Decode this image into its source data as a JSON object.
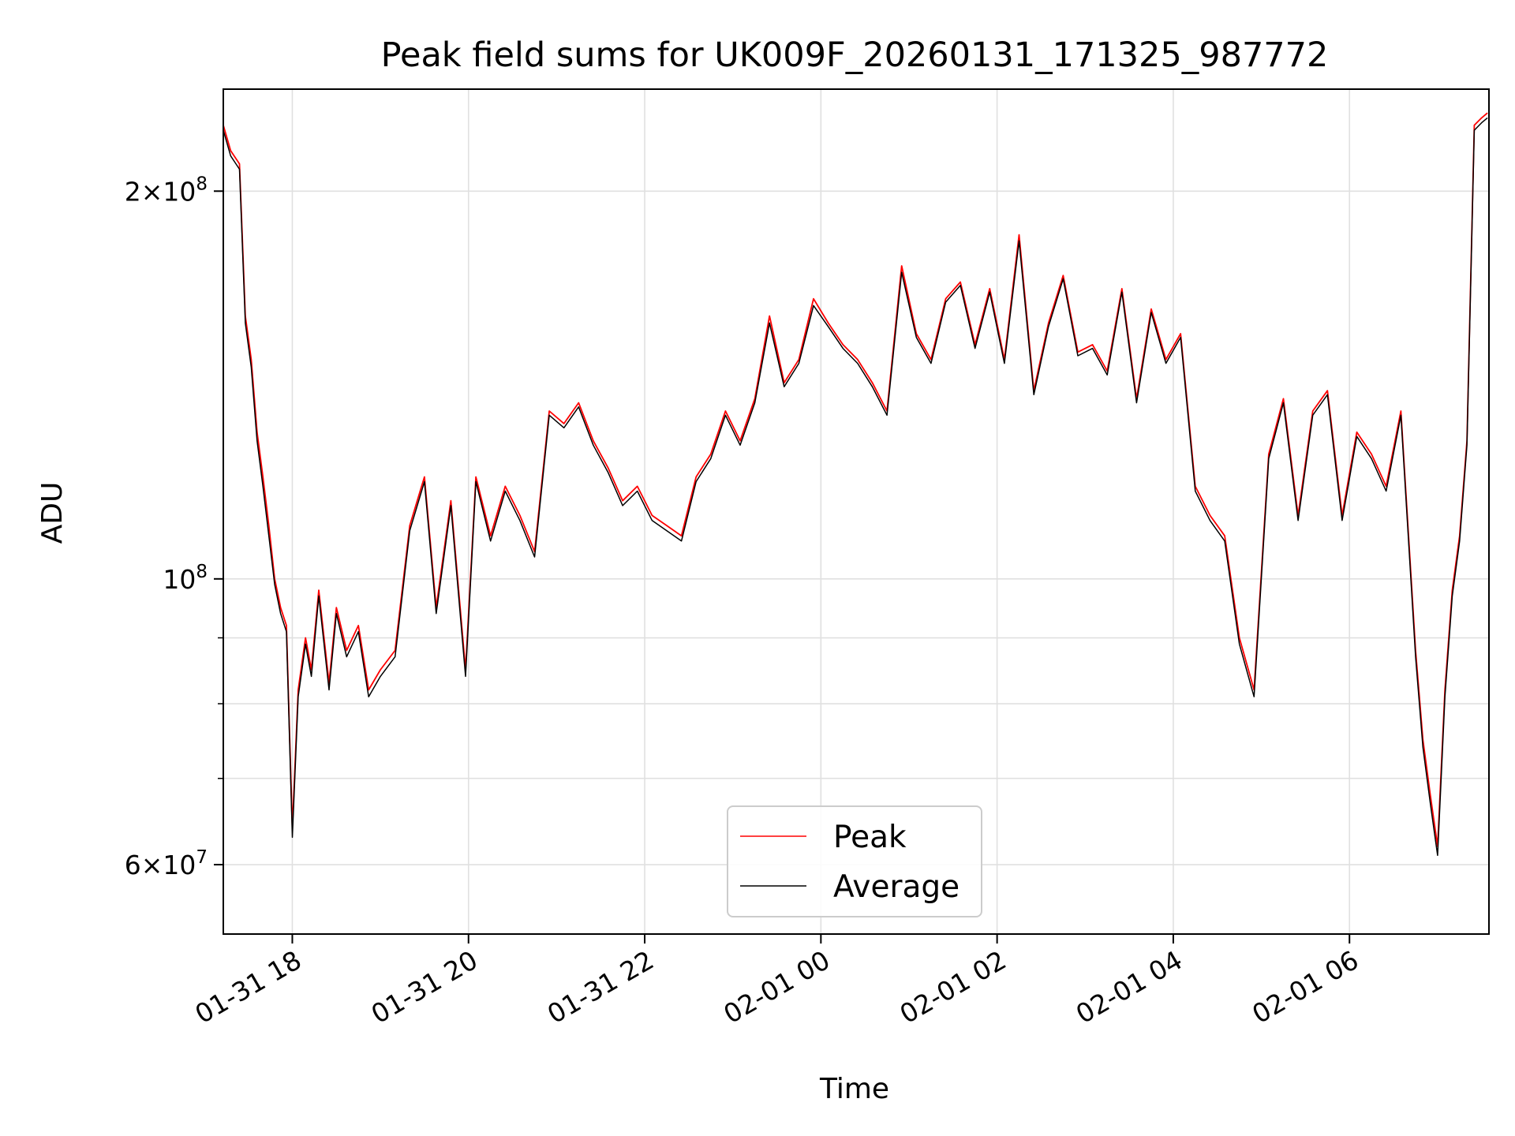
{
  "chart_data": {
    "type": "line",
    "title": "Peak field sums for UK009F_20260131_171325_987772",
    "xlabel": "Time",
    "ylabel": "ADU",
    "yscale": "log",
    "ylim": [
      53000000,
      240000000
    ],
    "xlim": [
      "2026-01-31T17:13",
      "2026-02-01T07:35"
    ],
    "grid": true,
    "legend": {
      "placement": "bottom-center",
      "entries": [
        "Peak",
        "Average"
      ]
    },
    "colors": {
      "Peak": "#ff0000",
      "Average": "#000000",
      "grid": "#e0e0e0",
      "axes": "#000000"
    },
    "xticks": [
      {
        "value": "2026-01-31T18:00",
        "label": "01-31 18"
      },
      {
        "value": "2026-01-31T20:00",
        "label": "01-31 20"
      },
      {
        "value": "2026-01-31T22:00",
        "label": "01-31 22"
      },
      {
        "value": "2026-02-01T00:00",
        "label": "02-01 00"
      },
      {
        "value": "2026-02-01T02:00",
        "label": "02-01 02"
      },
      {
        "value": "2026-02-01T04:00",
        "label": "02-01 04"
      },
      {
        "value": "2026-02-01T06:00",
        "label": "02-01 06"
      }
    ],
    "yticks_major": [
      {
        "value": 60000000,
        "mantissa": "6",
        "exponent": "7"
      },
      {
        "value": 100000000,
        "mantissa": "",
        "exponent": "8"
      },
      {
        "value": 200000000,
        "mantissa": "2",
        "exponent": "8"
      }
    ],
    "yticks_minor": [
      70000000,
      80000000,
      90000000
    ],
    "x": [
      "2026-01-31T17:13",
      "2026-01-31T17:18",
      "2026-01-31T17:24",
      "2026-01-31T17:28",
      "2026-01-31T17:32",
      "2026-01-31T17:36",
      "2026-01-31T17:40",
      "2026-01-31T17:44",
      "2026-01-31T17:48",
      "2026-01-31T17:52",
      "2026-01-31T17:56",
      "2026-01-31T18:00",
      "2026-01-31T18:04",
      "2026-01-31T18:09",
      "2026-01-31T18:13",
      "2026-01-31T18:18",
      "2026-01-31T18:25",
      "2026-01-31T18:30",
      "2026-01-31T18:37",
      "2026-01-31T18:45",
      "2026-01-31T18:52",
      "2026-01-31T19:00",
      "2026-01-31T19:10",
      "2026-01-31T19:20",
      "2026-01-31T19:30",
      "2026-01-31T19:38",
      "2026-01-31T19:48",
      "2026-01-31T19:58",
      "2026-01-31T20:05",
      "2026-01-31T20:15",
      "2026-01-31T20:25",
      "2026-01-31T20:35",
      "2026-01-31T20:45",
      "2026-01-31T20:55",
      "2026-01-31T21:05",
      "2026-01-31T21:15",
      "2026-01-31T21:25",
      "2026-01-31T21:35",
      "2026-01-31T21:45",
      "2026-01-31T21:55",
      "2026-01-31T22:05",
      "2026-01-31T22:15",
      "2026-01-31T22:25",
      "2026-01-31T22:35",
      "2026-01-31T22:45",
      "2026-01-31T22:55",
      "2026-01-31T23:05",
      "2026-01-31T23:15",
      "2026-01-31T23:25",
      "2026-01-31T23:35",
      "2026-01-31T23:45",
      "2026-01-31T23:55",
      "2026-02-01T00:05",
      "2026-02-01T00:15",
      "2026-02-01T00:25",
      "2026-02-01T00:35",
      "2026-02-01T00:45",
      "2026-02-01T00:55",
      "2026-02-01T01:05",
      "2026-02-01T01:15",
      "2026-02-01T01:25",
      "2026-02-01T01:35",
      "2026-02-01T01:45",
      "2026-02-01T01:55",
      "2026-02-01T02:05",
      "2026-02-01T02:15",
      "2026-02-01T02:25",
      "2026-02-01T02:35",
      "2026-02-01T02:45",
      "2026-02-01T02:55",
      "2026-02-01T03:05",
      "2026-02-01T03:15",
      "2026-02-01T03:25",
      "2026-02-01T03:35",
      "2026-02-01T03:45",
      "2026-02-01T03:55",
      "2026-02-01T04:05",
      "2026-02-01T04:15",
      "2026-02-01T04:25",
      "2026-02-01T04:35",
      "2026-02-01T04:45",
      "2026-02-01T04:55",
      "2026-02-01T05:05",
      "2026-02-01T05:15",
      "2026-02-01T05:25",
      "2026-02-01T05:35",
      "2026-02-01T05:45",
      "2026-02-01T05:55",
      "2026-02-01T06:05",
      "2026-02-01T06:15",
      "2026-02-01T06:25",
      "2026-02-01T06:35",
      "2026-02-01T06:45",
      "2026-02-01T06:50",
      "2026-02-01T06:55",
      "2026-02-01T07:00",
      "2026-02-01T07:05",
      "2026-02-01T07:10",
      "2026-02-01T07:15",
      "2026-02-01T07:20",
      "2026-02-01T07:25",
      "2026-02-01T07:30",
      "2026-02-01T07:34"
    ],
    "series": [
      {
        "name": "Peak",
        "color": "#ff0000",
        "values": [
          225000000,
          215000000,
          210000000,
          160000000,
          148000000,
          130000000,
          120000000,
          110000000,
          100000000,
          95000000,
          92000000,
          64000000,
          82000000,
          90000000,
          85000000,
          98000000,
          83000000,
          95000000,
          88000000,
          92000000,
          82000000,
          85000000,
          88000000,
          110000000,
          120000000,
          95000000,
          115000000,
          85000000,
          120000000,
          108000000,
          118000000,
          112000000,
          105000000,
          135000000,
          132000000,
          137000000,
          128000000,
          122000000,
          115000000,
          118000000,
          112000000,
          110000000,
          108000000,
          120000000,
          125000000,
          135000000,
          128000000,
          138000000,
          160000000,
          142000000,
          148000000,
          165000000,
          158000000,
          152000000,
          148000000,
          142000000,
          135000000,
          175000000,
          155000000,
          148000000,
          165000000,
          170000000,
          152000000,
          168000000,
          148000000,
          185000000,
          140000000,
          158000000,
          172000000,
          150000000,
          152000000,
          145000000,
          168000000,
          138000000,
          162000000,
          148000000,
          155000000,
          118000000,
          112000000,
          108000000,
          90000000,
          82000000,
          125000000,
          138000000,
          112000000,
          135000000,
          140000000,
          112000000,
          130000000,
          125000000,
          118000000,
          135000000,
          88000000,
          75000000,
          68000000,
          62000000,
          82000000,
          98000000,
          108000000,
          128000000,
          225000000,
          228000000,
          230000000
        ]
      },
      {
        "name": "Average",
        "color": "#000000",
        "values": [
          223000000,
          213000000,
          208000000,
          158000000,
          146000000,
          128000000,
          118000000,
          108000000,
          99000000,
          94000000,
          91000000,
          63000000,
          81000000,
          89000000,
          84000000,
          97000000,
          82000000,
          94000000,
          87000000,
          91000000,
          81000000,
          84000000,
          87000000,
          109000000,
          119000000,
          94000000,
          114000000,
          84000000,
          119000000,
          107000000,
          117000000,
          111000000,
          104000000,
          134000000,
          131000000,
          136000000,
          127000000,
          121000000,
          114000000,
          117000000,
          111000000,
          109000000,
          107000000,
          119000000,
          124000000,
          134000000,
          127000000,
          137000000,
          158000000,
          141000000,
          147000000,
          163000000,
          157000000,
          151000000,
          147000000,
          141000000,
          134000000,
          173000000,
          154000000,
          147000000,
          164000000,
          169000000,
          151000000,
          167000000,
          147000000,
          183000000,
          139000000,
          157000000,
          171000000,
          149000000,
          151000000,
          144000000,
          167000000,
          137000000,
          161000000,
          147000000,
          154000000,
          117000000,
          111000000,
          107000000,
          89000000,
          81000000,
          124000000,
          137000000,
          111000000,
          134000000,
          139000000,
          111000000,
          129000000,
          124000000,
          117000000,
          134000000,
          87000000,
          74000000,
          67000000,
          61000000,
          81000000,
          97000000,
          107000000,
          127000000,
          223000000,
          226000000,
          228000000
        ]
      }
    ]
  }
}
